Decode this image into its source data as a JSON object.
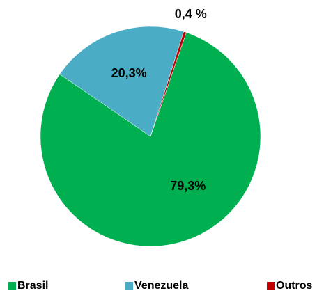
{
  "chart_data": {
    "type": "pie",
    "categories": [
      "Brasil",
      "Venezuela",
      "Outros"
    ],
    "values": [
      79.3,
      20.3,
      0.4
    ],
    "value_labels": [
      "79,3%",
      "20,3%",
      "0,4 %"
    ],
    "colors": [
      "#00b050",
      "#4bacc6",
      "#c00000"
    ],
    "legend": "bottom"
  }
}
